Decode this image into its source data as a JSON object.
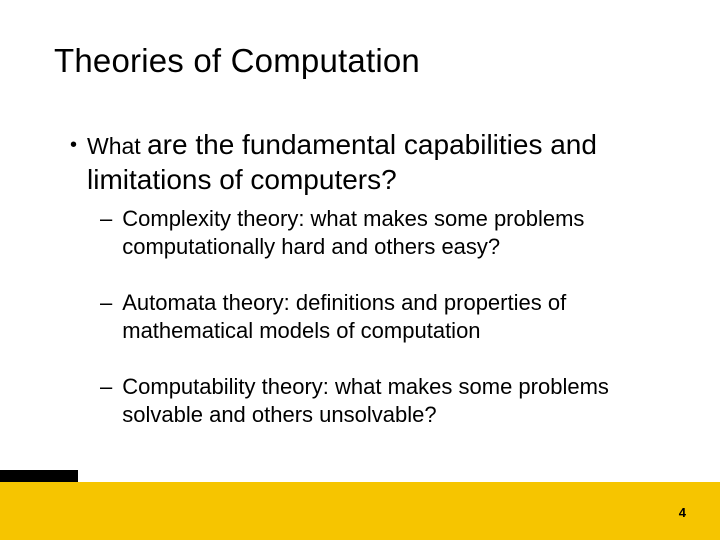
{
  "slide": {
    "title": "Theories of Computation",
    "bullet": {
      "lead": "What ",
      "rest": "are the fundamental capabilities and limitations of computers?"
    },
    "subbullets": [
      "Complexity theory: what makes some problems computationally hard and others easy?",
      "Automata theory: definitions and properties of mathematical models of computation",
      "Computability theory: what makes some problems solvable and others unsolvable?"
    ],
    "page_number": "4"
  },
  "style": {
    "background_color": "#ffffff",
    "footer_color": "#f6c500",
    "black_block_color": "#000000",
    "text_color": "#000000",
    "title_fontsize": 33,
    "lead_fontsize": 23,
    "main_fontsize": 28,
    "sub_fontsize": 22,
    "pagenum_fontsize": 13,
    "font_family": "Verdana"
  }
}
